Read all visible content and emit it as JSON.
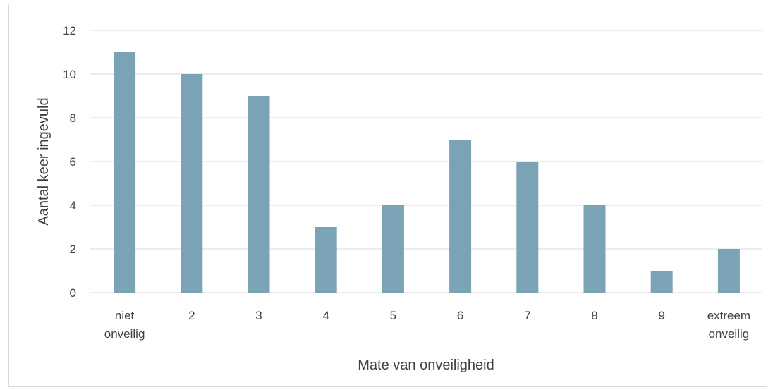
{
  "chart_data": {
    "type": "bar",
    "title": "",
    "xlabel": "Mate van onveiligheid",
    "ylabel": "Aantal keer ingevuld",
    "categories": [
      [
        "niet",
        "onveilig"
      ],
      [
        "2"
      ],
      [
        "3"
      ],
      [
        "4"
      ],
      [
        "5"
      ],
      [
        "6"
      ],
      [
        "7"
      ],
      [
        "8"
      ],
      [
        "9"
      ],
      [
        "extreem",
        "onveilig"
      ]
    ],
    "values": [
      11,
      10,
      9,
      3,
      4,
      7,
      6,
      4,
      1,
      2
    ],
    "ylim": [
      0,
      12
    ],
    "yticks": [
      "0",
      "2",
      "4",
      "6",
      "8",
      "10",
      "12"
    ],
    "grid": true,
    "bar_color": "#7aa4b6"
  }
}
